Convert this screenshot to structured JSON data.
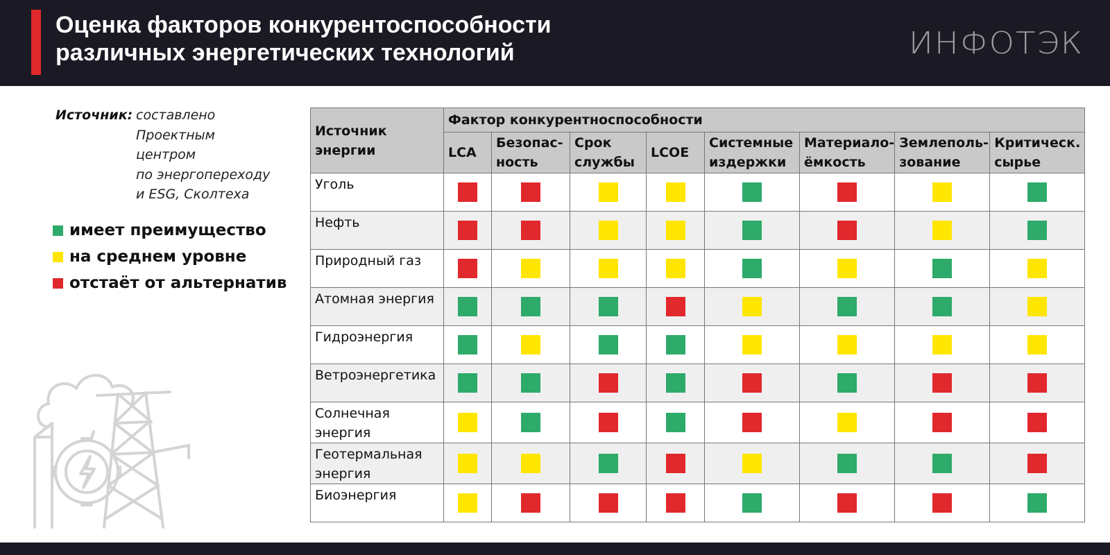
{
  "header": {
    "title": "Оценка факторов конкурентоспособности\nразличных энергетических технологий",
    "logo": "ИНФОТЭК"
  },
  "source": {
    "label": "Источник:",
    "text": "составлено\nПроектным\nцентром\nпо энергопереходу\nи ESG, Сколтеха"
  },
  "legend": [
    {
      "color": "#2eaa6a",
      "label": "имеет преимущество"
    },
    {
      "color": "#ffe600",
      "label": "на среднем уровне"
    },
    {
      "color": "#e1282d",
      "label": "отстаёт от альтернатив"
    }
  ],
  "table": {
    "row_header": "Источник\nэнергии",
    "group_header": "Фактор конкурентноспособности",
    "columns": [
      "LCA",
      "Безопас-\nность",
      "Срок\nслужбы",
      "LCOE",
      "Системные\nиздержки",
      "Материало-\nёмкость",
      "Землеполь-\nзование",
      "Критическ.\nсырье"
    ],
    "rows": [
      {
        "name": "Уголь",
        "cells": [
          "#e1282d",
          "#e1282d",
          "#ffe600",
          "#ffe600",
          "#2eaa6a",
          "#e1282d",
          "#ffe600",
          "#2eaa6a"
        ]
      },
      {
        "name": "Нефть",
        "cells": [
          "#e1282d",
          "#e1282d",
          "#ffe600",
          "#ffe600",
          "#2eaa6a",
          "#e1282d",
          "#ffe600",
          "#2eaa6a"
        ]
      },
      {
        "name": "Природный газ",
        "cells": [
          "#e1282d",
          "#ffe600",
          "#ffe600",
          "#ffe600",
          "#2eaa6a",
          "#ffe600",
          "#2eaa6a",
          "#ffe600"
        ]
      },
      {
        "name": "Атомная энергия",
        "cells": [
          "#2eaa6a",
          "#2eaa6a",
          "#2eaa6a",
          "#e1282d",
          "#ffe600",
          "#2eaa6a",
          "#2eaa6a",
          "#ffe600"
        ]
      },
      {
        "name": "Гидроэнергия",
        "cells": [
          "#2eaa6a",
          "#ffe600",
          "#2eaa6a",
          "#2eaa6a",
          "#ffe600",
          "#ffe600",
          "#ffe600",
          "#ffe600"
        ]
      },
      {
        "name": "Ветроэнергетика",
        "cells": [
          "#2eaa6a",
          "#2eaa6a",
          "#e1282d",
          "#2eaa6a",
          "#e1282d",
          "#2eaa6a",
          "#e1282d",
          "#e1282d"
        ]
      },
      {
        "name": "Солнечная\nэнергия",
        "cells": [
          "#ffe600",
          "#2eaa6a",
          "#e1282d",
          "#2eaa6a",
          "#e1282d",
          "#ffe600",
          "#e1282d",
          "#e1282d"
        ]
      },
      {
        "name": "Геотермальная\nэнергия",
        "cells": [
          "#ffe600",
          "#ffe600",
          "#2eaa6a",
          "#e1282d",
          "#ffe600",
          "#2eaa6a",
          "#2eaa6a",
          "#e1282d"
        ]
      },
      {
        "name": "Биоэнергия",
        "cells": [
          "#ffe600",
          "#e1282d",
          "#e1282d",
          "#e1282d",
          "#2eaa6a",
          "#e1282d",
          "#e1282d",
          "#2eaa6a"
        ]
      }
    ]
  }
}
